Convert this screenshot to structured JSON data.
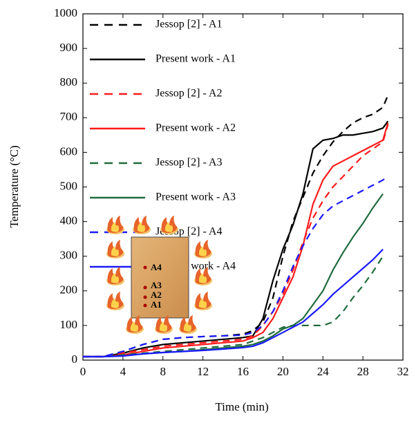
{
  "chart_data": {
    "type": "line",
    "xlabel": "Time (min)",
    "ylabel": "Temperature (°C)",
    "x": [
      0,
      2,
      4,
      6,
      8,
      10,
      12,
      14,
      16,
      17,
      18,
      19,
      20,
      21,
      22,
      23,
      24,
      25,
      26,
      27,
      28,
      29,
      30,
      30.5
    ],
    "xlim": [
      0,
      32
    ],
    "xticks": [
      0,
      4,
      8,
      12,
      16,
      20,
      24,
      28,
      32
    ],
    "ylim": [
      0,
      1000
    ],
    "yticks": [
      0,
      100,
      200,
      300,
      400,
      500,
      600,
      700,
      800,
      900,
      1000
    ],
    "legend": "upper left",
    "series": [
      {
        "name": "Jessop [2] - A1",
        "color": "#000000",
        "dash": true,
        "values": [
          10,
          10,
          25,
          45,
          60,
          65,
          68,
          70,
          75,
          85,
          110,
          180,
          300,
          400,
          470,
          540,
          590,
          630,
          660,
          685,
          700,
          710,
          730,
          765
        ]
      },
      {
        "name": "Present work - A1",
        "color": "#000000",
        "dash": false,
        "values": [
          10,
          10,
          20,
          35,
          45,
          50,
          55,
          60,
          65,
          70,
          120,
          230,
          320,
          390,
          480,
          610,
          635,
          640,
          650,
          650,
          655,
          660,
          670,
          690
        ]
      },
      {
        "name": "Jessop [2] - A2",
        "color": "#ff1a1a",
        "dash": true,
        "values": [
          10,
          10,
          20,
          30,
          40,
          45,
          50,
          55,
          60,
          70,
          100,
          140,
          190,
          260,
          340,
          410,
          460,
          500,
          530,
          560,
          590,
          610,
          630,
          680
        ]
      },
      {
        "name": "Present work - A2",
        "color": "#ff1a1a",
        "dash": false,
        "values": [
          10,
          10,
          15,
          25,
          35,
          40,
          45,
          50,
          55,
          65,
          80,
          120,
          180,
          240,
          330,
          450,
          520,
          560,
          575,
          590,
          605,
          620,
          635,
          685
        ]
      },
      {
        "name": "Jessop [2] - A3",
        "color": "#1e6b3c",
        "dash": true,
        "values": [
          10,
          10,
          15,
          20,
          25,
          30,
          35,
          40,
          45,
          55,
          65,
          80,
          95,
          100,
          100,
          100,
          100,
          110,
          140,
          180,
          215,
          255,
          300,
          null
        ]
      },
      {
        "name": "Present work - A3",
        "color": "#1e6b3c",
        "dash": false,
        "values": [
          10,
          10,
          12,
          18,
          22,
          25,
          30,
          35,
          40,
          45,
          55,
          70,
          90,
          100,
          120,
          160,
          200,
          260,
          310,
          355,
          395,
          440,
          480,
          null
        ]
      },
      {
        "name": "Jessop [2] - A4",
        "color": "#1a1aff",
        "dash": true,
        "values": [
          10,
          10,
          25,
          45,
          60,
          65,
          68,
          70,
          72,
          80,
          100,
          140,
          200,
          270,
          330,
          380,
          420,
          445,
          460,
          475,
          490,
          505,
          520,
          530
        ]
      },
      {
        "name": "Present work - A4",
        "color": "#1a1aff",
        "dash": false,
        "values": [
          10,
          10,
          12,
          18,
          22,
          25,
          28,
          32,
          36,
          40,
          50,
          65,
          80,
          95,
          110,
          135,
          160,
          190,
          215,
          240,
          265,
          290,
          320,
          null
        ]
      }
    ],
    "inset_labels": [
      "A4",
      "A3",
      "A2",
      "A1"
    ]
  }
}
